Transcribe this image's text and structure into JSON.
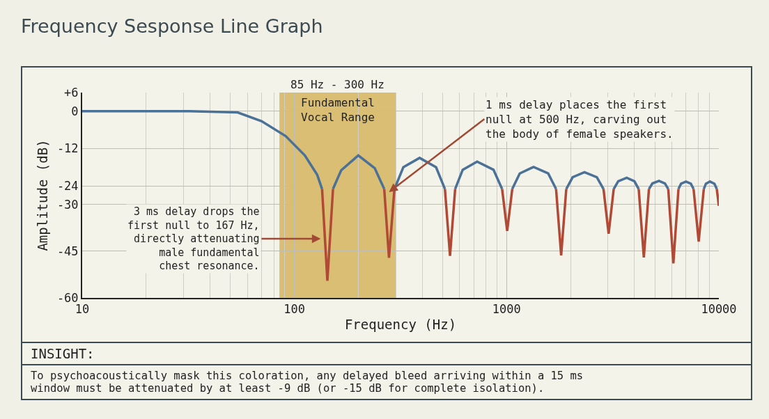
{
  "chart_data": {
    "type": "line",
    "title": "Frequency Sesponse Line Graph",
    "xlabel": "Frequency (Hz)",
    "ylabel": "Amplitude (dB)",
    "log": "x",
    "grid": true,
    "marker": "none",
    "line_style": "solid",
    "xlim": [
      10,
      10000
    ],
    "xticks": [
      10,
      100,
      1000,
      10000
    ],
    "ylim": [
      -60,
      6
    ],
    "yticks": [
      {
        "value": 6,
        "label": "+6"
      },
      0,
      -12,
      -24,
      -30,
      -45,
      -60
    ],
    "x": [
      10,
      32,
      54,
      70,
      91,
      112,
      128,
      135,
      143,
      152,
      166,
      200,
      239,
      265,
      279,
      296,
      326,
      389,
      465,
      512,
      541,
      572,
      621,
      726,
      867,
      952,
      1006,
      1063,
      1153,
      1340,
      1570,
      1710,
      1807,
      1910,
      2047,
      2327,
      2661,
      2861,
      3024,
      3196,
      3357,
      3681,
      4000,
      4192,
      4431,
      4683,
      4864,
      5225,
      5572,
      5776,
      6105,
      6452,
      6637,
      7000,
      7380,
      7602,
      8035,
      8493,
      8690,
      9078,
      9530,
      9780,
      10000
    ],
    "series": [
      {
        "color": "#4b7196",
        "values": [
          0,
          0,
          -0.4,
          -3.2,
          -8,
          -14.2,
          -20.4,
          -25,
          null,
          -25,
          -19,
          -14.2,
          -18.3,
          -25,
          null,
          -25,
          -18,
          -15,
          -18,
          -25,
          null,
          -25,
          -18.8,
          -16.2,
          -18.8,
          -25,
          null,
          -25,
          -20,
          -17.9,
          -20,
          -25,
          null,
          -25,
          -21.2,
          -19.6,
          -21.2,
          -25,
          null,
          -25,
          -22.5,
          -21.4,
          -22.5,
          -25,
          null,
          -25,
          -23.2,
          -22.4,
          -23.2,
          -25,
          null,
          -25,
          -23.3,
          -22.6,
          -23.3,
          -25,
          null,
          -25,
          -23.3,
          -22.6,
          -23.3,
          -25,
          null
        ]
      },
      {
        "color": "#b04a36",
        "values": [
          null,
          null,
          null,
          null,
          null,
          null,
          null,
          -25,
          -54.5,
          -25,
          null,
          null,
          null,
          -25,
          -47.1,
          -25,
          null,
          null,
          null,
          -25,
          -46.5,
          -25,
          null,
          null,
          null,
          -25,
          -38.5,
          -25,
          null,
          null,
          null,
          -25,
          -46.3,
          -25,
          null,
          null,
          null,
          -25,
          -39.4,
          -25,
          null,
          null,
          null,
          -25,
          -47,
          -25,
          null,
          null,
          null,
          -25,
          -48.9,
          -25,
          null,
          null,
          null,
          -25,
          -41.9,
          -25,
          null,
          null,
          null,
          -25,
          -30.4
        ]
      }
    ],
    "bands": [
      {
        "axis": "x",
        "from": 85,
        "to": 300,
        "label": "Fundamental\nVocal Range",
        "color": "#d4b45e"
      }
    ],
    "annotations": [
      {
        "text": "85 Hz - 300 Hz",
        "x": 160,
        "y": 6
      },
      {
        "text": "3 ms delay drops the\nfirst null to 167 Hz,\ndirectly attenuating\nmale fundamental\nchest resonance.",
        "x": 133,
        "y": -41
      },
      {
        "text": "1 ms delay places the first\nnull at 500 Hz, carving out\nthe body of female speakers.",
        "x": 279,
        "y": -26
      },
      "INSIGHT:",
      "To psychoacoustically mask this coloration, any delayed bleed arriving within a 15 ms\nwindow must be attenuated by at least -9 dB (or -15 dB for complete isolation)."
    ]
  }
}
